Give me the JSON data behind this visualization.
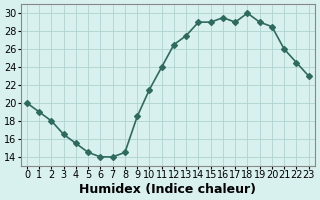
{
  "x": [
    0,
    1,
    2,
    3,
    4,
    5,
    6,
    7,
    8,
    9,
    10,
    11,
    12,
    13,
    14,
    15,
    16,
    17,
    18,
    19,
    20,
    21,
    22,
    23
  ],
  "y": [
    20,
    19,
    18,
    16.5,
    15.5,
    14.5,
    14,
    14,
    14.5,
    18.5,
    21.5,
    24,
    26.5,
    27.5,
    29,
    29,
    29.5,
    29,
    30,
    29,
    28.5,
    26,
    24.5,
    23
  ],
  "line_color": "#2e6b5e",
  "marker": "D",
  "marker_size": 3,
  "line_width": 1.2,
  "bg_color": "#d8f0ee",
  "grid_color": "#b0d4d0",
  "xlabel": "Humidex (Indice chaleur)",
  "xlabel_fontsize": 9,
  "tick_fontsize": 7,
  "ylim": [
    13,
    31
  ],
  "yticks": [
    14,
    16,
    18,
    20,
    22,
    24,
    26,
    28,
    30
  ],
  "xticks": [
    0,
    1,
    2,
    3,
    4,
    5,
    6,
    7,
    8,
    9,
    10,
    11,
    12,
    13,
    14,
    15,
    16,
    17,
    18,
    19,
    20,
    21,
    22,
    23
  ],
  "xlim": [
    -0.5,
    23.5
  ]
}
